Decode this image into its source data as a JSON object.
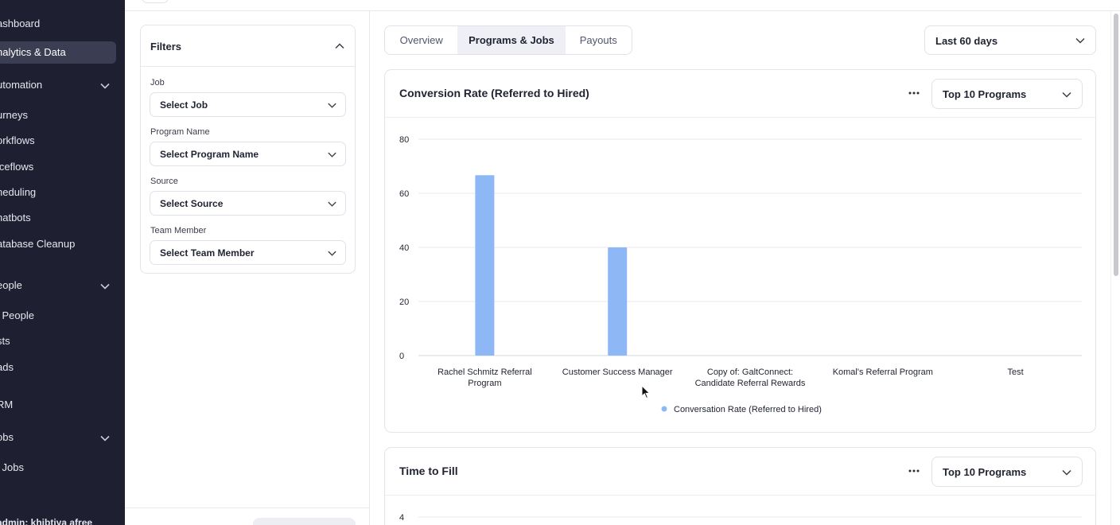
{
  "sidebar": {
    "items": [
      {
        "label": "ashboard",
        "active": false
      },
      {
        "label": "nalytics & Data",
        "active": true
      },
      {
        "label": "utomation",
        "active": false,
        "expandable": true
      },
      {
        "label": "urneys",
        "active": false
      },
      {
        "label": "orkflows",
        "active": false
      },
      {
        "label": "iceflows",
        "active": false
      },
      {
        "label": "heduling",
        "active": false
      },
      {
        "label": "hatbots",
        "active": false
      },
      {
        "label": "atabase Cleanup",
        "active": false
      },
      {
        "label": "eople",
        "active": false,
        "expandable": true
      },
      {
        "label": "l People",
        "active": false
      },
      {
        "label": "sts",
        "active": false
      },
      {
        "label": "ads",
        "active": false
      },
      {
        "label": "RM",
        "active": false
      },
      {
        "label": "obs",
        "active": false,
        "expandable": true
      },
      {
        "label": "l Jobs",
        "active": false
      }
    ],
    "user_label": "admin: khibtiya afree"
  },
  "filters": {
    "title": "Filters",
    "fields": [
      {
        "label": "Job",
        "value": "Select Job"
      },
      {
        "label": "Program Name",
        "value": "Select Program Name"
      },
      {
        "label": "Source",
        "value": "Select Source"
      },
      {
        "label": "Team Member",
        "value": "Select Team Member"
      }
    ]
  },
  "tabs": [
    {
      "label": "Overview",
      "active": false
    },
    {
      "label": "Programs & Jobs",
      "active": true
    },
    {
      "label": "Payouts",
      "active": false
    }
  ],
  "date_range": {
    "value": "Last 60 days"
  },
  "cards": [
    {
      "title": "Conversion Rate (Referred to Hired)",
      "select_value": "Top 10 Programs"
    },
    {
      "title": "Time to Fill",
      "select_value": "Top 10 Programs"
    }
  ],
  "chart_data": [
    {
      "type": "bar",
      "title": "Conversion Rate (Referred to Hired)",
      "categories": [
        [
          "Rachel Schmitz Referral",
          "Program"
        ],
        [
          "Customer Success Manager"
        ],
        [
          "Copy of: GaltConnect:",
          "Candidate Referral Rewards"
        ],
        [
          "Komal's Referral Program"
        ],
        [
          "Test"
        ]
      ],
      "series": [
        {
          "name": "Conversation Rate (Referred to Hired)",
          "values": [
            66.7,
            40,
            0,
            0,
            0
          ],
          "color": "#8db8f5"
        }
      ],
      "yticks": [
        "0",
        "20",
        "40",
        "60",
        "80"
      ],
      "ylim": [
        0,
        80
      ],
      "grid": true,
      "legend": "bottom-center"
    },
    {
      "type": "bar",
      "title": "Time to Fill",
      "yticks": [
        "4"
      ],
      "ylim": [
        0,
        4
      ]
    }
  ],
  "colors": {
    "sidebar_bg": "#1e2032",
    "bar": "#8db8f5",
    "active_tab_bg": "#eef0f6"
  }
}
